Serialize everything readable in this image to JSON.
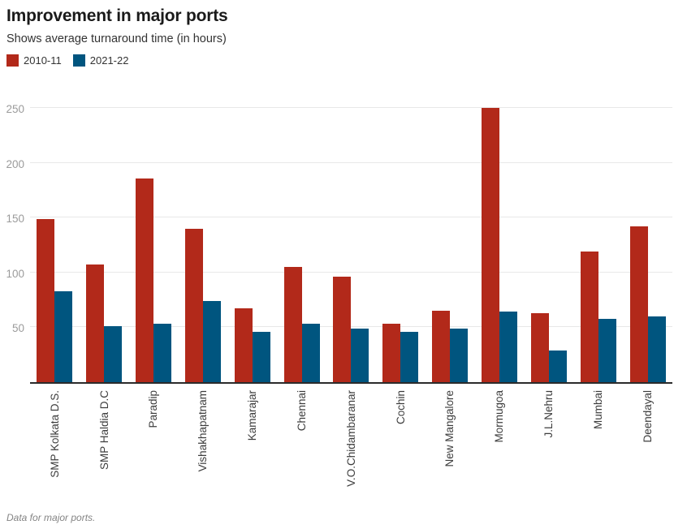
{
  "header": {
    "title": "Improvement in major ports",
    "subtitle": "Shows average turnaround time (in hours)"
  },
  "footer": {
    "note": "Data for major ports."
  },
  "colors": {
    "series_2010_11": "#b2291a",
    "series_2021_22": "#00557f",
    "gridline": "#e8e8e8",
    "axis_line": "#2b2b2b",
    "y_tick_label": "#9b9b9b",
    "x_tick_label": "#3d3d3d"
  },
  "chart_data": {
    "type": "bar",
    "title": "Improvement in major ports",
    "subtitle": "Shows average turnaround time (in hours)",
    "categories": [
      "SMP Kolkata D.S.",
      "SMP Haldia D.C",
      "Paradip",
      "Vishakhapatnam",
      "Kamarajar",
      "Chennai",
      "V.O.Chidambaranar",
      "Cochin",
      "New Mangalore",
      "Mormugoa",
      "J.L.Nehru",
      "Mumbai",
      "Deendayal"
    ],
    "series": [
      {
        "name": "2010-11",
        "color": "#b2291a",
        "values": [
          149,
          107,
          186,
          140,
          67,
          105,
          96,
          53,
          65,
          250,
          63,
          119,
          142
        ]
      },
      {
        "name": "2021-22",
        "color": "#00557f",
        "values": [
          83,
          51,
          53,
          74,
          46,
          53,
          49,
          46,
          49,
          64,
          29,
          58,
          60
        ]
      }
    ],
    "xlabel": "",
    "ylabel": "",
    "yticks": [
      50,
      100,
      150,
      200,
      250
    ],
    "ylim": [
      0,
      261
    ],
    "grid": true,
    "legend_position": "top-left",
    "x_tick_rotation": 90,
    "footnote": "Data for major ports."
  }
}
